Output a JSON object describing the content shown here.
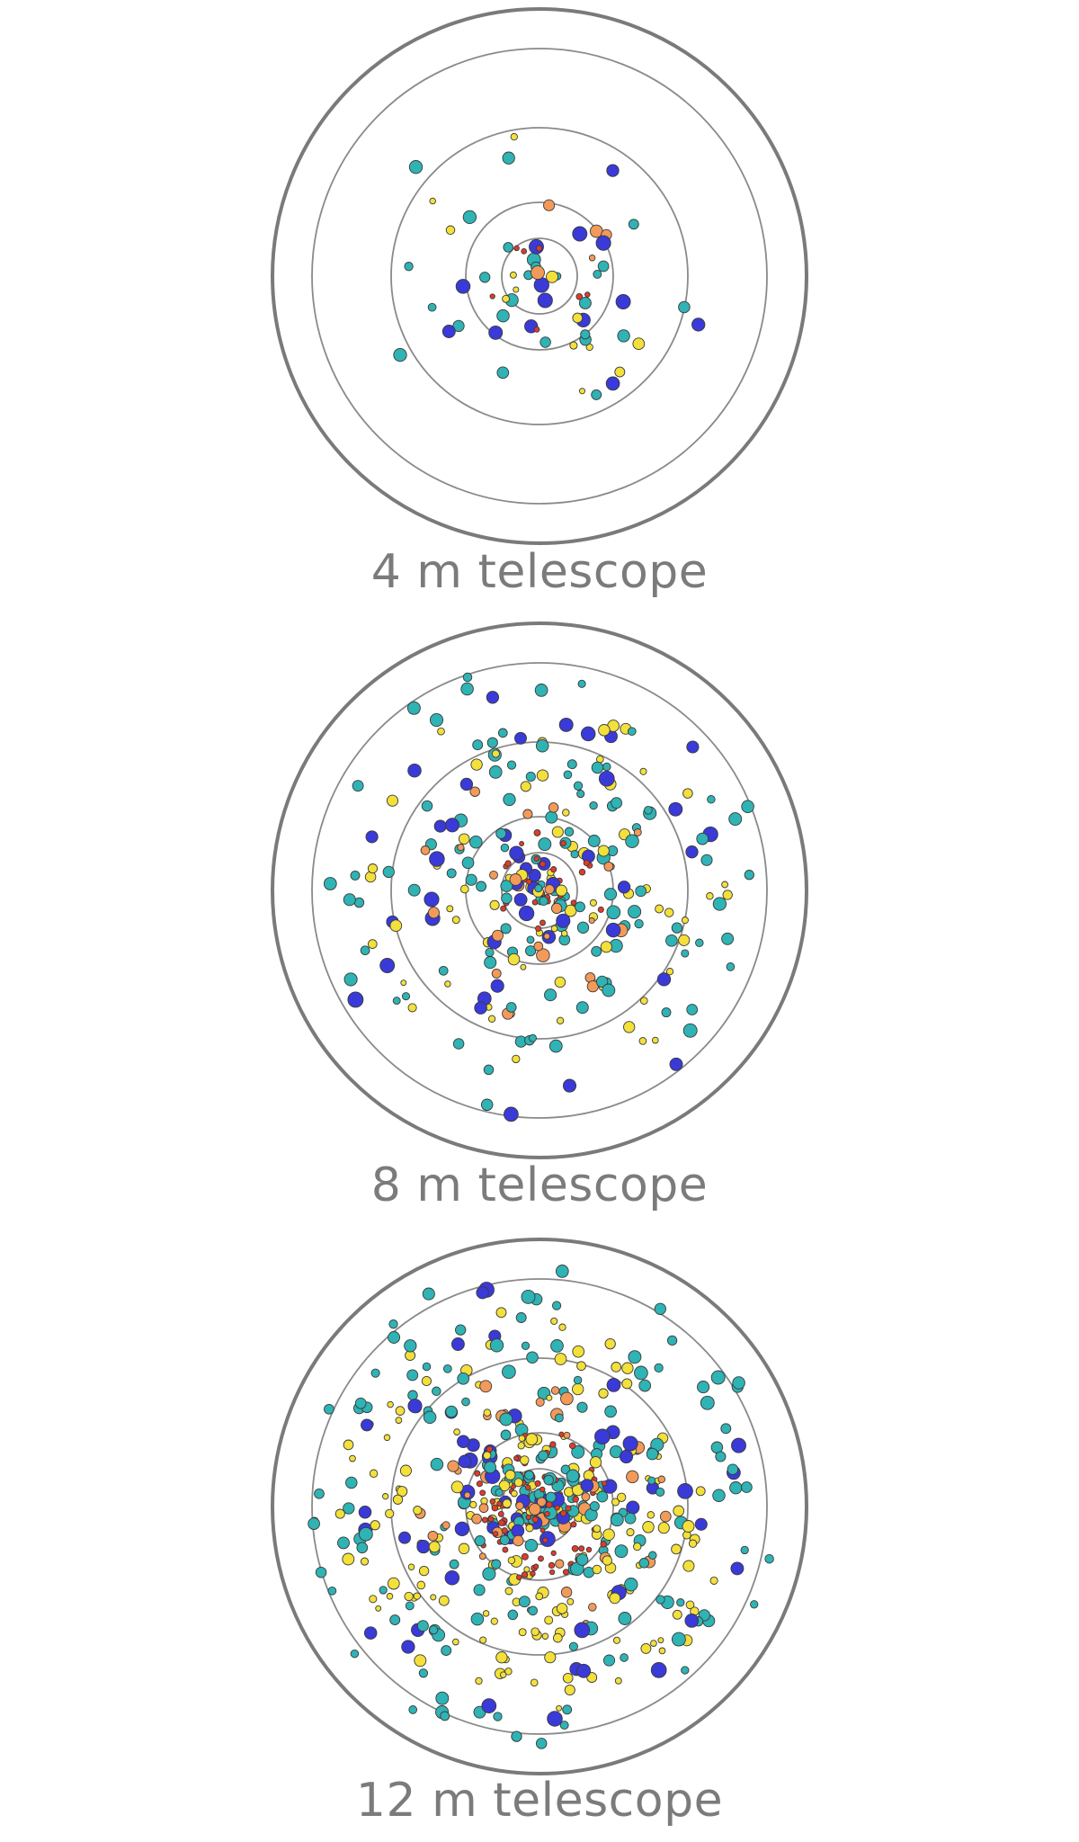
{
  "panels": [
    {
      "label": "4 m telescope",
      "seed": 11,
      "counts": {
        "blue": 14,
        "teal": 26,
        "yellow": 13,
        "orange": 5,
        "red": 8
      }
    },
    {
      "label": "8 m telescope",
      "seed": 23,
      "counts": {
        "blue": 45,
        "teal": 120,
        "yellow": 75,
        "orange": 25,
        "red": 30
      }
    },
    {
      "label": "12 m telescope",
      "seed": 37,
      "counts": {
        "blue": 60,
        "teal": 200,
        "yellow": 190,
        "orange": 50,
        "red": 100
      }
    }
  ],
  "colors": {
    "blue": "#3a3ad8",
    "teal": "#2fb3b5",
    "yellow": "#f3e03a",
    "orange": "#f39a5a",
    "red": "#e23b2a",
    "ring": "#8a8a8a",
    "outer_ring": "#7a7a7a",
    "dot_stroke": "#3a3a3a",
    "label": "#7b7b7b"
  }
}
